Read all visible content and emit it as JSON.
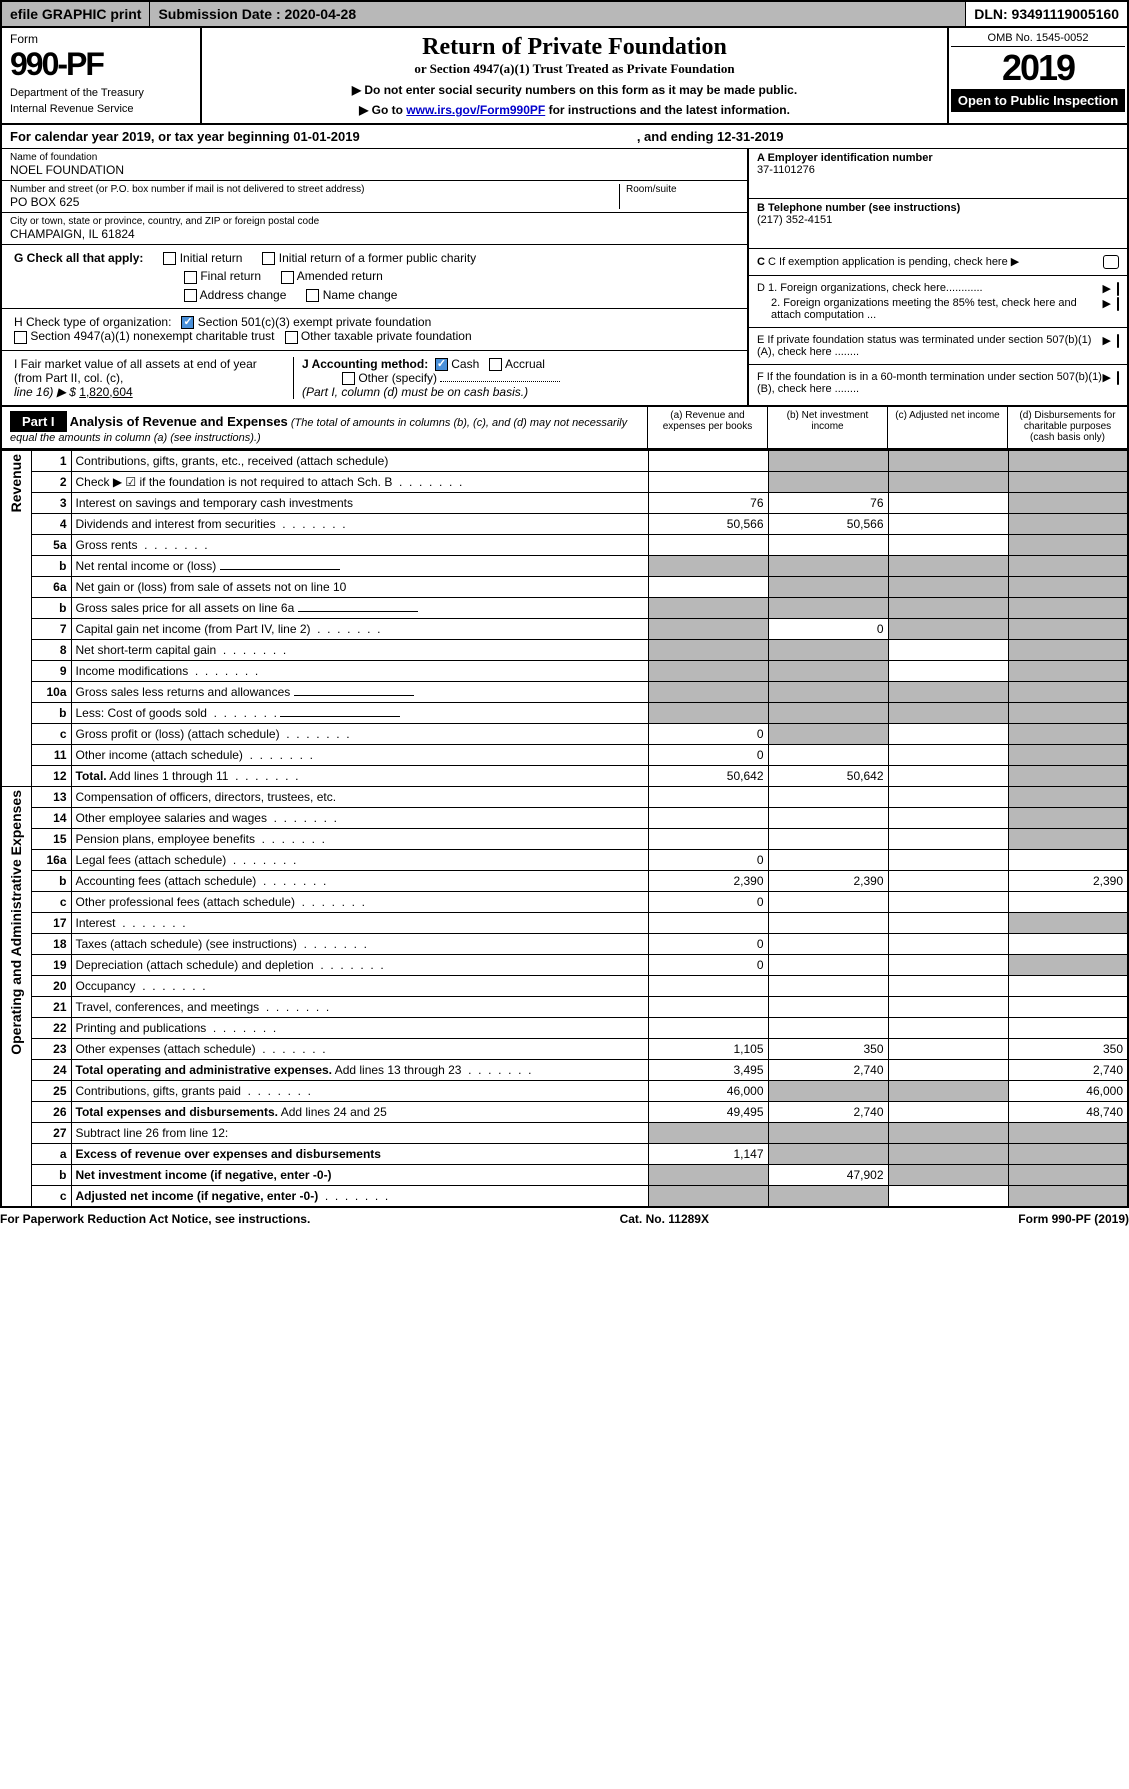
{
  "topbar": {
    "efile": "efile GRAPHIC print",
    "submission": "Submission Date : 2020-04-28",
    "dln": "DLN: 93491119005160"
  },
  "header": {
    "form": "Form",
    "formNumber": "990-PF",
    "dept1": "Department of the Treasury",
    "dept2": "Internal Revenue Service",
    "title": "Return of Private Foundation",
    "subtitle": "or Section 4947(a)(1) Trust Treated as Private Foundation",
    "note1": "▶ Do not enter social security numbers on this form as it may be made public.",
    "note2a": "▶ Go to ",
    "note2link": "www.irs.gov/Form990PF",
    "note2b": " for instructions and the latest information.",
    "omb": "OMB No. 1545-0052",
    "year": "2019",
    "openPublic": "Open to Public Inspection"
  },
  "calendar": {
    "text1": "For calendar year 2019, or tax year beginning 01-01-2019",
    "text2": ", and ending 12-31-2019"
  },
  "name": {
    "label": "Name of foundation",
    "value": "NOEL FOUNDATION"
  },
  "addr": {
    "label": "Number and street (or P.O. box number if mail is not delivered to street address)",
    "value": "PO BOX 625",
    "room": "Room/suite"
  },
  "city": {
    "label": "City or town, state or province, country, and ZIP or foreign postal code",
    "value": "CHAMPAIGN, IL  61824"
  },
  "boxA": {
    "label": "A Employer identification number",
    "value": "37-1101276"
  },
  "boxB": {
    "label": "B Telephone number (see instructions)",
    "value": "(217) 352-4151"
  },
  "boxC": "C If exemption application is pending, check here",
  "boxD1": "D 1. Foreign organizations, check here............",
  "boxD2": "2. Foreign organizations meeting the 85% test, check here and attach computation ...",
  "boxE": "E If private foundation status was terminated under section 507(b)(1)(A), check here ........",
  "boxF": "F If the foundation is in a 60-month termination under section 507(b)(1)(B), check here ........",
  "boxG": {
    "label": "G Check all that apply:",
    "opts": [
      "Initial return",
      "Initial return of a former public charity",
      "Final return",
      "Amended return",
      "Address change",
      "Name change"
    ]
  },
  "boxH": {
    "label": "H Check type of organization:",
    "opt1": "Section 501(c)(3) exempt private foundation",
    "opt2": "Section 4947(a)(1) nonexempt charitable trust",
    "opt3": "Other taxable private foundation"
  },
  "boxI": {
    "label": "I Fair market value of all assets at end of year (from Part II, col. (c),",
    "line16": "line 16)  ▶ $",
    "value": "1,820,604"
  },
  "boxJ": {
    "label": "J Accounting method:",
    "cash": "Cash",
    "accrual": "Accrual",
    "other": "Other (specify)",
    "note": "(Part I, column (d) must be on cash basis.)"
  },
  "part1": {
    "label": "Part I",
    "title": "Analysis of Revenue and Expenses",
    "desc": "(The total of amounts in columns (b), (c), and (d) may not necessarily equal the amounts in column (a) (see instructions).)",
    "colA": "(a)   Revenue and expenses per books",
    "colB": "(b)   Net investment income",
    "colC": "(c)   Adjusted net income",
    "colD": "(d)   Disbursements for charitable purposes (cash basis only)"
  },
  "sideLabels": {
    "revenue": "Revenue",
    "expenses": "Operating and Administrative Expenses"
  },
  "rows": [
    {
      "n": "1",
      "d": "Contributions, gifts, grants, etc., received (attach schedule)",
      "a": "",
      "b": "",
      "bg": true,
      "cg": true,
      "dg": true
    },
    {
      "n": "2",
      "d": "Check ▶ ☑ if the foundation is not required to attach Sch. B",
      "a": "",
      "b": "",
      "bg": true,
      "cg": true,
      "dg": true,
      "bold": false,
      "dots": true
    },
    {
      "n": "3",
      "d": "Interest on savings and temporary cash investments",
      "a": "76",
      "b": "76",
      "dg": true
    },
    {
      "n": "4",
      "d": "Dividends and interest from securities",
      "a": "50,566",
      "b": "50,566",
      "dots": true,
      "dg": true
    },
    {
      "n": "5a",
      "d": "Gross rents",
      "dots": true,
      "dg": true
    },
    {
      "n": "b",
      "d": "Net rental income or (loss)",
      "underline": true,
      "ag": true,
      "bg": true,
      "cg": true,
      "dg": true
    },
    {
      "n": "6a",
      "d": "Net gain or (loss) from sale of assets not on line 10",
      "bg": true,
      "cg": true,
      "dg": true
    },
    {
      "n": "b",
      "d": "Gross sales price for all assets on line 6a",
      "underline": true,
      "ag": true,
      "bg": true,
      "cg": true,
      "dg": true
    },
    {
      "n": "7",
      "d": "Capital gain net income (from Part IV, line 2)",
      "dots": true,
      "ag": true,
      "b": "0",
      "cg": true,
      "dg": true
    },
    {
      "n": "8",
      "d": "Net short-term capital gain",
      "dots": true,
      "ag": true,
      "bg": true,
      "dg": true
    },
    {
      "n": "9",
      "d": "Income modifications",
      "dots": true,
      "ag": true,
      "bg": true,
      "dg": true
    },
    {
      "n": "10a",
      "d": "Gross sales less returns and allowances",
      "underline": true,
      "ag": true,
      "bg": true,
      "cg": true,
      "dg": true
    },
    {
      "n": "b",
      "d": "Less: Cost of goods sold",
      "dots": true,
      "underline": true,
      "ag": true,
      "bg": true,
      "cg": true,
      "dg": true
    },
    {
      "n": "c",
      "d": "Gross profit or (loss) (attach schedule)",
      "dots": true,
      "a": "0",
      "bg": true,
      "dg": true
    },
    {
      "n": "11",
      "d": "Other income (attach schedule)",
      "dots": true,
      "a": "0",
      "dg": true
    },
    {
      "n": "12",
      "d": "Total. Add lines 1 through 11",
      "bold": true,
      "dots": true,
      "a": "50,642",
      "b": "50,642",
      "dg": true
    }
  ],
  "erows": [
    {
      "n": "13",
      "d": "Compensation of officers, directors, trustees, etc.",
      "dg": true
    },
    {
      "n": "14",
      "d": "Other employee salaries and wages",
      "dots": true,
      "dg": true
    },
    {
      "n": "15",
      "d": "Pension plans, employee benefits",
      "dots": true,
      "dg": true
    },
    {
      "n": "16a",
      "d": "Legal fees (attach schedule)",
      "dots": true,
      "a": "0"
    },
    {
      "n": "b",
      "d": "Accounting fees (attach schedule)",
      "dots": true,
      "a": "2,390",
      "b": "2,390",
      "dd": "2,390"
    },
    {
      "n": "c",
      "d": "Other professional fees (attach schedule)",
      "dots": true,
      "a": "0"
    },
    {
      "n": "17",
      "d": "Interest",
      "dots": true,
      "dg": true
    },
    {
      "n": "18",
      "d": "Taxes (attach schedule) (see instructions)",
      "dots": true,
      "a": "0"
    },
    {
      "n": "19",
      "d": "Depreciation (attach schedule) and depletion",
      "dots": true,
      "a": "0",
      "dg": true
    },
    {
      "n": "20",
      "d": "Occupancy",
      "dots": true
    },
    {
      "n": "21",
      "d": "Travel, conferences, and meetings",
      "dots": true
    },
    {
      "n": "22",
      "d": "Printing and publications",
      "dots": true
    },
    {
      "n": "23",
      "d": "Other expenses (attach schedule)",
      "dots": true,
      "a": "1,105",
      "b": "350",
      "dd": "350"
    },
    {
      "n": "24",
      "d": "Total operating and administrative expenses. Add lines 13 through 23",
      "bold": true,
      "dots": true,
      "a": "3,495",
      "b": "2,740",
      "dd": "2,740"
    },
    {
      "n": "25",
      "d": "Contributions, gifts, grants paid",
      "dots": true,
      "a": "46,000",
      "bg": true,
      "cg": true,
      "dd": "46,000"
    },
    {
      "n": "26",
      "d": "Total expenses and disbursements. Add lines 24 and 25",
      "bold": true,
      "a": "49,495",
      "b": "2,740",
      "dd": "48,740"
    },
    {
      "n": "27",
      "d": "Subtract line 26 from line 12:",
      "ag": true,
      "bg": true,
      "cg": true,
      "dg": true
    },
    {
      "n": "a",
      "d": "Excess of revenue over expenses and disbursements",
      "bold": true,
      "a": "1,147",
      "bg": true,
      "cg": true,
      "dg": true
    },
    {
      "n": "b",
      "d": "Net investment income (if negative, enter -0-)",
      "bold": true,
      "ag": true,
      "b": "47,902",
      "cg": true,
      "dg": true
    },
    {
      "n": "c",
      "d": "Adjusted net income (if negative, enter -0-)",
      "bold": true,
      "dots": true,
      "ag": true,
      "bg": true,
      "dg": true
    }
  ],
  "footer": {
    "left": "For Paperwork Reduction Act Notice, see instructions.",
    "center": "Cat. No. 11289X",
    "right": "Form 990-PF (2019)"
  }
}
